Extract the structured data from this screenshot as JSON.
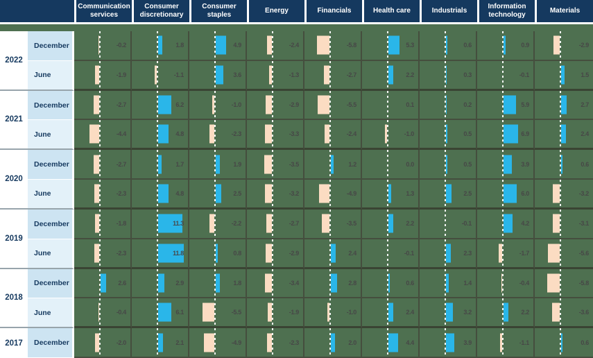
{
  "colors": {
    "header_bg": "#15395f",
    "body_bg": "#4e7050",
    "grid_line": "#454e3e",
    "grid_line_strong": "#3a4433",
    "positive_bar": "#2ab6e9",
    "negative_bar": "#fbdcc2",
    "value_text": "#474747",
    "label_text": "#15395f",
    "december_row_bg": "#cde4f2",
    "june_row_bg": "#e3f1f9"
  },
  "chart_data": {
    "type": "bar",
    "layout": "table-of-horizontal-bars",
    "title": "",
    "legend_position": "none",
    "grid": true,
    "cell_axis_range": [
      -12,
      15
    ],
    "value_format": "one-decimal",
    "columns": [
      "Communication services",
      "Consumer discretionary",
      "Consumer staples",
      "Energy",
      "Financials",
      "Health care",
      "Industrials",
      "Information technology",
      "Materials"
    ],
    "row_groups": [
      {
        "year": "2022",
        "rows": [
          {
            "label": "December",
            "values": [
              -0.2,
              1.8,
              4.9,
              -2.4,
              -5.8,
              5.3,
              0.6,
              0.9,
              -2.9
            ]
          },
          {
            "label": "June",
            "values": [
              -1.9,
              -1.1,
              3.6,
              -1.3,
              -2.7,
              2.2,
              0.3,
              -0.1,
              1.5
            ]
          }
        ]
      },
      {
        "year": "2021",
        "rows": [
          {
            "label": "December",
            "values": [
              -2.7,
              6.2,
              -1.0,
              -2.9,
              -5.5,
              0.1,
              0.2,
              5.9,
              2.7
            ]
          },
          {
            "label": "June",
            "values": [
              -4.4,
              4.8,
              -2.3,
              -3.3,
              -2.4,
              -1.0,
              0.5,
              6.9,
              2.4
            ]
          }
        ]
      },
      {
        "year": "2020",
        "rows": [
          {
            "label": "December",
            "values": [
              -2.7,
              1.7,
              1.9,
              -3.5,
              1.2,
              0.0,
              0.5,
              3.9,
              0.6
            ]
          },
          {
            "label": "June",
            "values": [
              -2.3,
              4.8,
              2.5,
              -3.2,
              -4.9,
              1.3,
              2.5,
              6.0,
              -3.2
            ]
          }
        ]
      },
      {
        "year": "2019",
        "rows": [
          {
            "label": "December",
            "values": [
              -1.8,
              11.3,
              -2.2,
              -2.7,
              -3.5,
              2.2,
              -0.1,
              4.2,
              -3.1
            ]
          },
          {
            "label": "June",
            "values": [
              -2.3,
              11.8,
              0.8,
              -2.9,
              2.4,
              -0.1,
              2.3,
              -1.7,
              -5.6
            ]
          }
        ]
      },
      {
        "year": "2018",
        "rows": [
          {
            "label": "December",
            "values": [
              2.6,
              2.9,
              1.8,
              -3.4,
              2.8,
              0.6,
              1.4,
              -0.4,
              -5.8
            ]
          },
          {
            "label": "June",
            "values": [
              -0.4,
              6.1,
              -5.5,
              -1.9,
              -1.0,
              2.4,
              3.2,
              2.2,
              -3.6
            ]
          }
        ]
      },
      {
        "year": "2017",
        "rows": [
          {
            "label": "December",
            "values": [
              -2.0,
              2.1,
              -4.9,
              -2.3,
              2.0,
              4.4,
              3.9,
              -1.1,
              0.6
            ]
          }
        ]
      }
    ]
  }
}
